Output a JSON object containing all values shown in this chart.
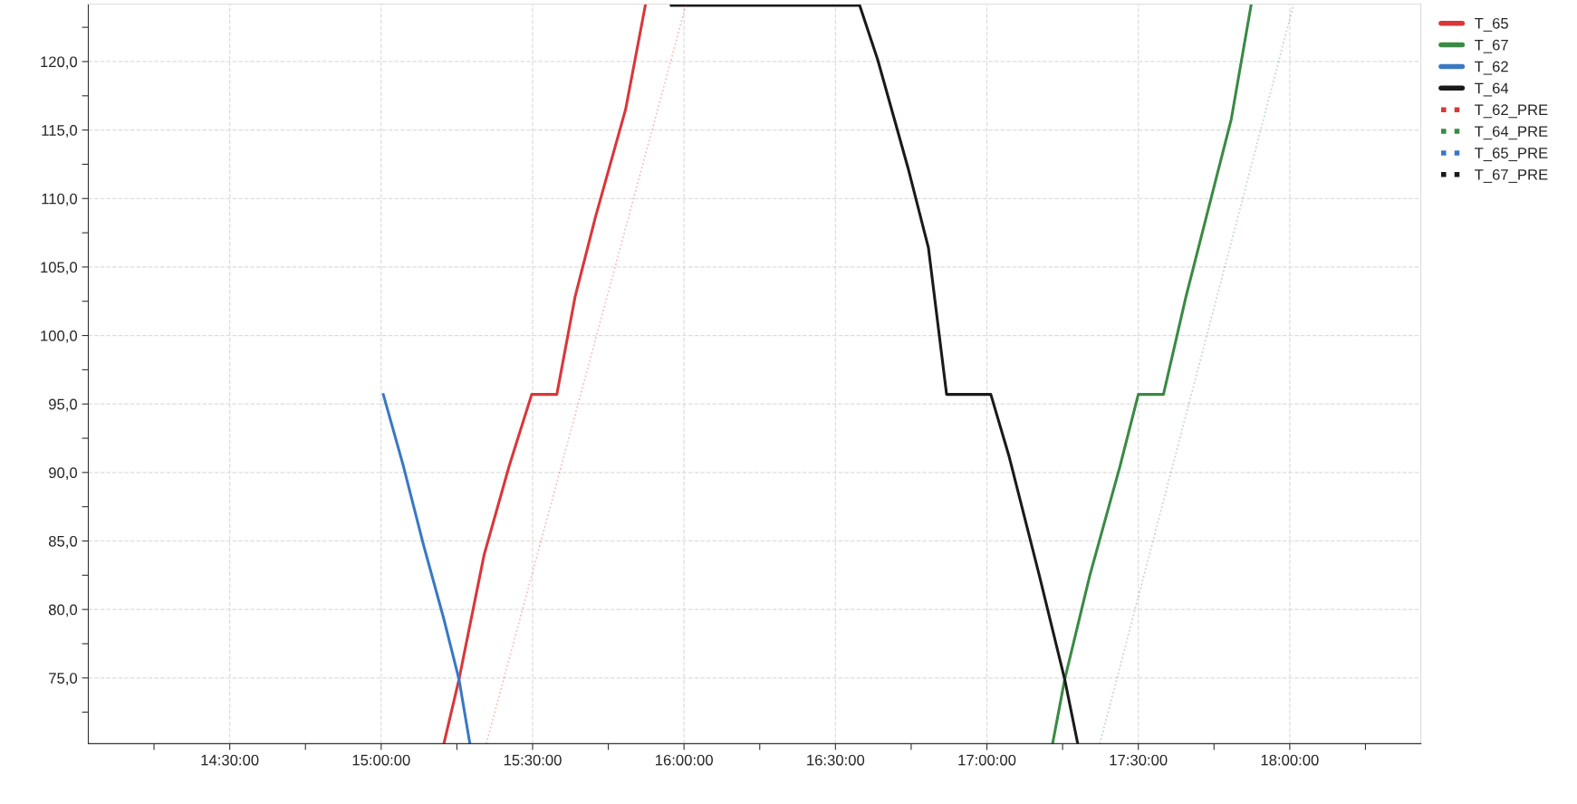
{
  "chart_data": {
    "type": "line",
    "xlim": [
      14.033,
      18.433
    ],
    "ylim": [
      70.2,
      124.2
    ],
    "xticks": [
      {
        "value": 14.25,
        "label": null
      },
      {
        "value": 14.5,
        "label": "14:30:00"
      },
      {
        "value": 14.75,
        "label": null
      },
      {
        "value": 15.0,
        "label": "15:00:00"
      },
      {
        "value": 15.25,
        "label": null
      },
      {
        "value": 15.5,
        "label": "15:30:00"
      },
      {
        "value": 15.75,
        "label": null
      },
      {
        "value": 16.0,
        "label": "16:00:00"
      },
      {
        "value": 16.25,
        "label": null
      },
      {
        "value": 16.5,
        "label": "16:30:00"
      },
      {
        "value": 16.75,
        "label": null
      },
      {
        "value": 17.0,
        "label": "17:00:00"
      },
      {
        "value": 17.25,
        "label": null
      },
      {
        "value": 17.5,
        "label": "17:30:00"
      },
      {
        "value": 17.75,
        "label": null
      },
      {
        "value": 18.0,
        "label": "18:00:00"
      },
      {
        "value": 18.25,
        "label": null
      }
    ],
    "yticks": [
      {
        "value": 72.5,
        "label": null
      },
      {
        "value": 75,
        "label": "75,0"
      },
      {
        "value": 77.5,
        "label": null
      },
      {
        "value": 80,
        "label": "80,0"
      },
      {
        "value": 82.5,
        "label": null
      },
      {
        "value": 85,
        "label": "85,0"
      },
      {
        "value": 87.5,
        "label": null
      },
      {
        "value": 90,
        "label": "90,0"
      },
      {
        "value": 92.5,
        "label": null
      },
      {
        "value": 95,
        "label": "95,0"
      },
      {
        "value": 97.5,
        "label": null
      },
      {
        "value": 100,
        "label": "100,0"
      },
      {
        "value": 102.5,
        "label": null
      },
      {
        "value": 105,
        "label": "105,0"
      },
      {
        "value": 107.5,
        "label": null
      },
      {
        "value": 110,
        "label": "110,0"
      },
      {
        "value": 112.5,
        "label": null
      },
      {
        "value": 115,
        "label": "115,0"
      },
      {
        "value": 117.5,
        "label": null
      },
      {
        "value": 120,
        "label": "120,0"
      },
      {
        "value": 122.5,
        "label": null
      }
    ],
    "grid": true,
    "legend": "right",
    "marker": "none",
    "series": [
      {
        "name": "T_65",
        "color": "#d9373a",
        "line_style": "solid",
        "x": [
          15.207,
          15.257,
          15.34,
          15.423,
          15.497,
          15.58,
          15.64,
          15.707,
          15.807,
          15.873
        ],
        "values": [
          70.2,
          74.9,
          84.0,
          90.5,
          95.7,
          95.7,
          102.8,
          108.6,
          116.5,
          124.2
        ]
      },
      {
        "name": "T_67",
        "color": "#3a8a45",
        "line_style": "solid",
        "x": [
          17.217,
          17.257,
          17.34,
          17.44,
          17.5,
          17.583,
          17.657,
          17.74,
          17.807,
          17.873
        ],
        "values": [
          70.2,
          74.9,
          82.5,
          90.5,
          95.7,
          95.7,
          102.8,
          110.0,
          115.8,
          124.2
        ]
      },
      {
        "name": "T_62",
        "color": "#3a78c4",
        "line_style": "solid",
        "x": [
          15.007,
          15.073,
          15.14,
          15.207,
          15.257,
          15.293
        ],
        "values": [
          95.7,
          90.5,
          84.7,
          79.3,
          74.9,
          70.2
        ]
      },
      {
        "name": "T_64",
        "color": "#1a1a1a",
        "line_style": "solid",
        "x": [
          15.957,
          16.58,
          16.64,
          16.74,
          16.807,
          16.867,
          17.013,
          17.073,
          17.173,
          17.257,
          17.3
        ],
        "values": [
          124.1,
          124.1,
          120.1,
          112.2,
          106.4,
          95.7,
          95.7,
          91.2,
          82.5,
          74.9,
          70.2
        ]
      },
      {
        "name": "T_62_PRE",
        "color": "#d9373a",
        "line_style": "dotted",
        "x": [
          15.347,
          16.007
        ],
        "values": [
          70.2,
          124.2
        ]
      },
      {
        "name": "T_64_PRE",
        "color": "#3a8a45",
        "line_style": "dotted",
        "x": [
          17.373,
          18.013
        ],
        "values": [
          70.2,
          124.2
        ]
      },
      {
        "name": "T_65_PRE",
        "color": "#3a78c4",
        "line_style": "dotted"
      },
      {
        "name": "T_67_PRE",
        "color": "#1a1a1a",
        "line_style": "dotted"
      }
    ]
  }
}
